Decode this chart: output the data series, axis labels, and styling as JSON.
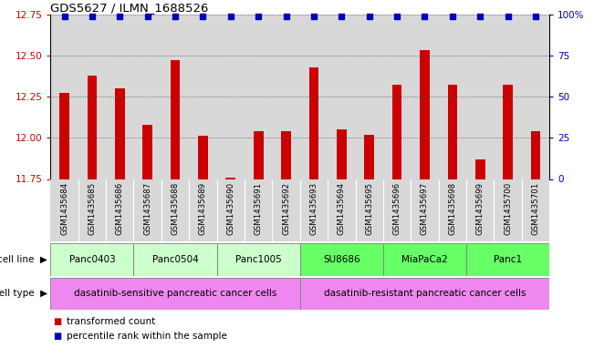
{
  "title": "GDS5627 / ILMN_1688526",
  "samples": [
    "GSM1435684",
    "GSM1435685",
    "GSM1435686",
    "GSM1435687",
    "GSM1435688",
    "GSM1435689",
    "GSM1435690",
    "GSM1435691",
    "GSM1435692",
    "GSM1435693",
    "GSM1435694",
    "GSM1435695",
    "GSM1435696",
    "GSM1435697",
    "GSM1435698",
    "GSM1435699",
    "GSM1435700",
    "GSM1435701"
  ],
  "bar_values": [
    12.27,
    12.38,
    12.3,
    12.08,
    12.47,
    12.01,
    11.76,
    12.04,
    12.04,
    12.43,
    12.05,
    12.02,
    12.32,
    12.53,
    12.32,
    11.87,
    12.32,
    12.04
  ],
  "bar_color": "#CC0000",
  "percentile_color": "#0000BB",
  "ylim_left": [
    11.75,
    12.75
  ],
  "ylim_right": [
    0,
    100
  ],
  "yticks_left": [
    11.75,
    12.0,
    12.25,
    12.5,
    12.75
  ],
  "yticks_right": [
    0,
    25,
    50,
    75,
    100
  ],
  "cell_lines": [
    {
      "label": "Panc0403",
      "start": 0,
      "end": 3,
      "color": "#ccffcc"
    },
    {
      "label": "Panc0504",
      "start": 3,
      "end": 6,
      "color": "#ccffcc"
    },
    {
      "label": "Panc1005",
      "start": 6,
      "end": 9,
      "color": "#ccffcc"
    },
    {
      "label": "SU8686",
      "start": 9,
      "end": 12,
      "color": "#66ff66"
    },
    {
      "label": "MiaPaCa2",
      "start": 12,
      "end": 15,
      "color": "#66ff66"
    },
    {
      "label": "Panc1",
      "start": 15,
      "end": 18,
      "color": "#66ff66"
    }
  ],
  "cell_types": [
    {
      "label": "dasatinib-sensitive pancreatic cancer cells",
      "start": 0,
      "end": 9,
      "color": "#ee88ee"
    },
    {
      "label": "dasatinib-resistant pancreatic cancer cells",
      "start": 9,
      "end": 18,
      "color": "#ee88ee"
    }
  ],
  "legend_bar_label": "transformed count",
  "legend_pct_label": "percentile rank within the sample",
  "background_color": "#ffffff",
  "tick_label_color_left": "#CC0000",
  "tick_label_color_right": "#0000BB",
  "sample_col_color": "#d8d8d8",
  "grid_color": "#555555"
}
